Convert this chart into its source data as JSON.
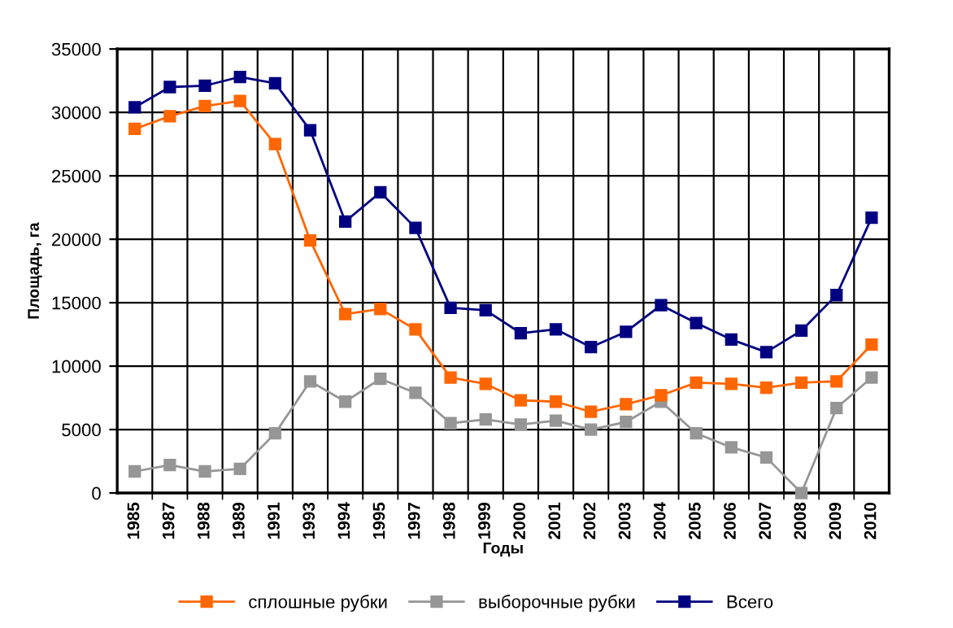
{
  "chart_data": {
    "type": "line",
    "xlabel": "Годы",
    "ylabel": "Площадь, га",
    "categories": [
      "1985",
      "1987",
      "1988",
      "1989",
      "1991",
      "1993",
      "1994",
      "1995",
      "1997",
      "1998",
      "1999",
      "2000",
      "2001",
      "2002",
      "2003",
      "2004",
      "2005",
      "2006",
      "2007",
      "2008",
      "2009",
      "2010"
    ],
    "series": [
      {
        "name": "сплошные рубки",
        "color": "#ff6600",
        "values": [
          28700,
          29700,
          30500,
          30900,
          27500,
          19900,
          14100,
          14500,
          12900,
          9100,
          8600,
          7300,
          7200,
          6400,
          7000,
          7700,
          8700,
          8600,
          8300,
          8700,
          8800,
          11700
        ]
      },
      {
        "name": "выборочные рубки",
        "color": "#969696",
        "values": [
          1700,
          2200,
          1700,
          1900,
          4700,
          8800,
          7200,
          9000,
          7900,
          5500,
          5800,
          5400,
          5700,
          5000,
          5600,
          7200,
          4700,
          3600,
          2800,
          0,
          6700,
          9100
        ]
      },
      {
        "name": "Всего",
        "color": "#000080",
        "values": [
          30400,
          32000,
          32100,
          32800,
          32300,
          28600,
          21400,
          23700,
          20900,
          14600,
          14400,
          12600,
          12900,
          11500,
          12700,
          14800,
          13400,
          12100,
          11100,
          12800,
          15600,
          21700
        ]
      }
    ],
    "ylim": [
      0,
      35000
    ],
    "yticks": [
      0,
      5000,
      10000,
      15000,
      20000,
      25000,
      30000,
      35000
    ],
    "grid": true,
    "legend": "bottom",
    "marker": "square",
    "line_style": "solid"
  }
}
